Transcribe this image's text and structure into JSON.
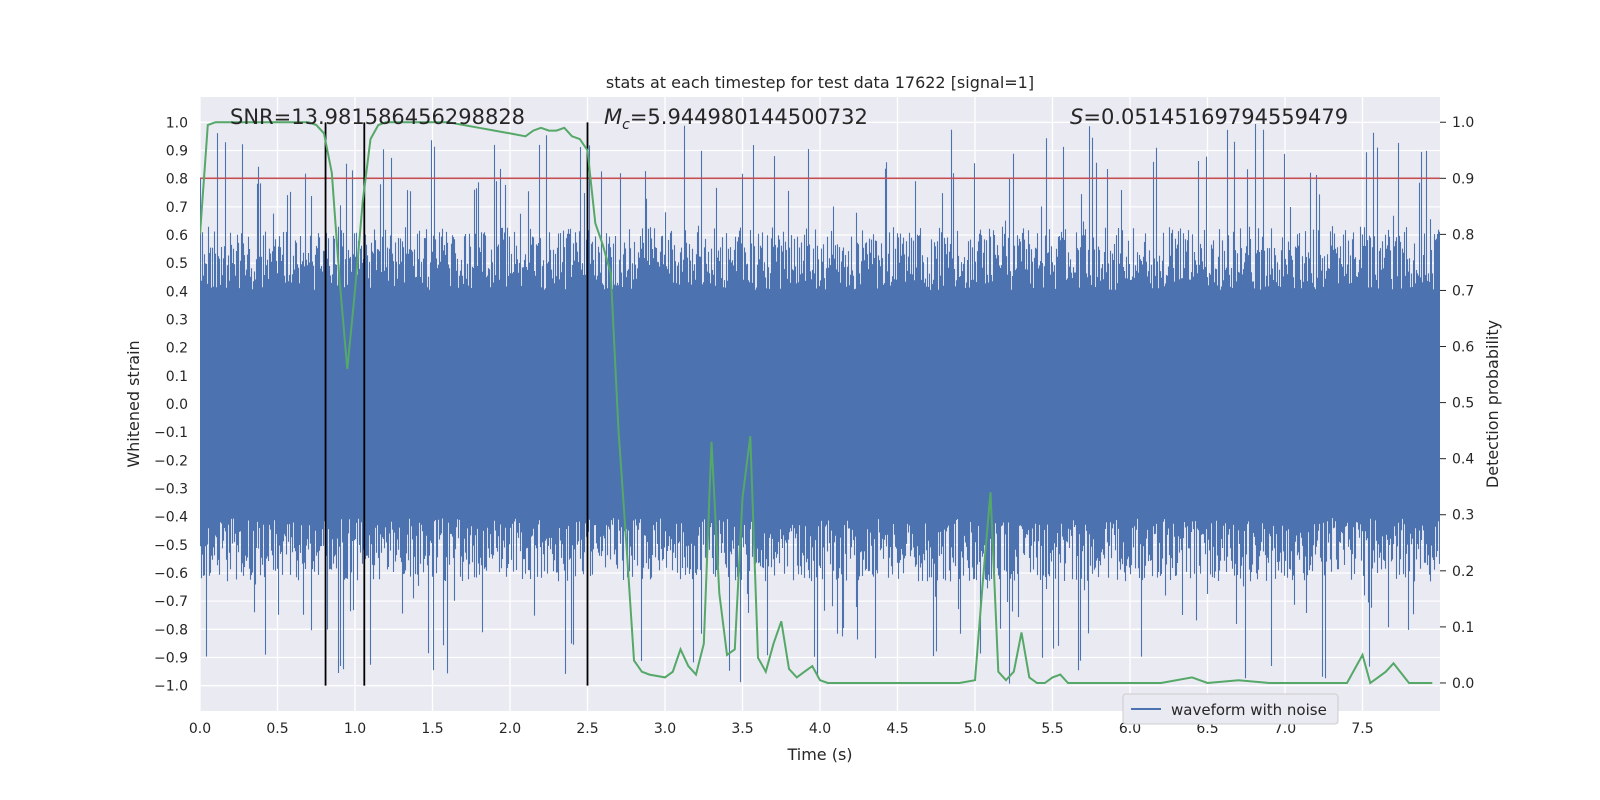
{
  "chart_data": {
    "type": "line",
    "title": "stats at each timestep for test data 17622 [signal=1]",
    "xlabel": "Time (s)",
    "ylabel_left": "Whitened strain",
    "ylabel_right": "Detection probability",
    "xlim": [
      0.0,
      8.0
    ],
    "ylim_left": [
      -1.09,
      1.09
    ],
    "ylim_right": [
      -0.05,
      1.045
    ],
    "x_ticks": [
      "0.0",
      "0.5",
      "1.0",
      "1.5",
      "2.0",
      "2.5",
      "3.0",
      "3.5",
      "4.0",
      "4.5",
      "5.0",
      "5.5",
      "6.0",
      "6.5",
      "7.0",
      "7.5"
    ],
    "y_left_ticks": [
      "1.0",
      "0.9",
      "0.8",
      "0.7",
      "0.6",
      "0.5",
      "0.4",
      "0.3",
      "0.2",
      "0.1",
      "0.0",
      "-0.1",
      "-0.2",
      "-0.3",
      "-0.4",
      "-0.5",
      "-0.6",
      "-0.7",
      "-0.8",
      "-0.9",
      "-1.0"
    ],
    "y_right_ticks": [
      "1.0",
      "0.9",
      "0.8",
      "0.7",
      "0.6",
      "0.5",
      "0.4",
      "0.3",
      "0.2",
      "0.1",
      "0.0"
    ],
    "grid": true,
    "legend_position": "bottom-right",
    "annotations": {
      "snr": "SNR=13.981586456298828",
      "mc_symbol": "M",
      "mc_sub": "c",
      "mc_value": "=5.944980144500732",
      "s_symbol": "S",
      "s_value": "=0.05145169794559479"
    },
    "threshold": {
      "value": 0.9,
      "axis": "right",
      "color": "#c44e52"
    },
    "vlines": [
      0.81,
      1.06,
      2.5
    ],
    "colors": {
      "waveform": "#4c72b0",
      "probability": "#55a868",
      "vline": "#000000",
      "background": "#eaeaf2",
      "grid": "#ffffff"
    },
    "series": [
      {
        "name": "waveform with noise",
        "type": "noise-waveform",
        "amplitude_typical": 0.45,
        "amplitude_peak": 1.0
      },
      {
        "name": "detection probability",
        "x": [
          0.0,
          0.05,
          0.1,
          0.2,
          0.3,
          0.4,
          0.5,
          0.6,
          0.7,
          0.75,
          0.8,
          0.85,
          0.9,
          0.95,
          1.0,
          1.05,
          1.1,
          1.15,
          1.2,
          1.3,
          1.4,
          1.5,
          1.6,
          1.7,
          1.8,
          1.9,
          2.0,
          2.1,
          2.15,
          2.2,
          2.25,
          2.3,
          2.35,
          2.4,
          2.45,
          2.5,
          2.55,
          2.6,
          2.65,
          2.7,
          2.75,
          2.8,
          2.85,
          2.9,
          3.0,
          3.05,
          3.1,
          3.15,
          3.2,
          3.25,
          3.3,
          3.35,
          3.4,
          3.45,
          3.5,
          3.55,
          3.6,
          3.65,
          3.7,
          3.75,
          3.8,
          3.85,
          3.9,
          3.95,
          4.0,
          4.05,
          4.1,
          4.15,
          4.2,
          4.3,
          4.5,
          4.7,
          4.9,
          5.0,
          5.05,
          5.1,
          5.15,
          5.2,
          5.25,
          5.3,
          5.35,
          5.4,
          5.45,
          5.5,
          5.55,
          5.6,
          5.65,
          5.7,
          5.8,
          6.0,
          6.2,
          6.4,
          6.5,
          6.7,
          6.9,
          7.1,
          7.3,
          7.4,
          7.5,
          7.55,
          7.6,
          7.65,
          7.7,
          7.8,
          7.85,
          7.95
        ],
        "y": [
          0.8,
          0.995,
          1.0,
          1.0,
          1.0,
          1.0,
          1.0,
          1.0,
          1.0,
          0.995,
          0.98,
          0.91,
          0.72,
          0.56,
          0.7,
          0.86,
          0.97,
          0.995,
          1.0,
          1.0,
          1.0,
          1.0,
          1.0,
          0.995,
          0.99,
          0.985,
          0.98,
          0.975,
          0.985,
          0.99,
          0.985,
          0.985,
          0.99,
          0.975,
          0.97,
          0.95,
          0.82,
          0.78,
          0.73,
          0.45,
          0.25,
          0.04,
          0.02,
          0.015,
          0.01,
          0.02,
          0.06,
          0.03,
          0.015,
          0.07,
          0.43,
          0.16,
          0.05,
          0.06,
          0.33,
          0.44,
          0.045,
          0.02,
          0.07,
          0.11,
          0.025,
          0.01,
          0.02,
          0.03,
          0.005,
          0.0,
          0.0,
          0.0,
          0.0,
          0.0,
          0.0,
          0.0,
          0.0,
          0.005,
          0.18,
          0.34,
          0.02,
          0.005,
          0.02,
          0.09,
          0.01,
          0.0,
          0.0,
          0.01,
          0.015,
          0.0,
          0.0,
          0.0,
          0.0,
          0.0,
          0.0,
          0.01,
          0.0,
          0.005,
          0.0,
          0.0,
          0.0,
          0.0,
          0.05,
          0.0,
          0.01,
          0.02,
          0.035,
          0.0,
          0.0,
          0.0
        ]
      }
    ]
  }
}
